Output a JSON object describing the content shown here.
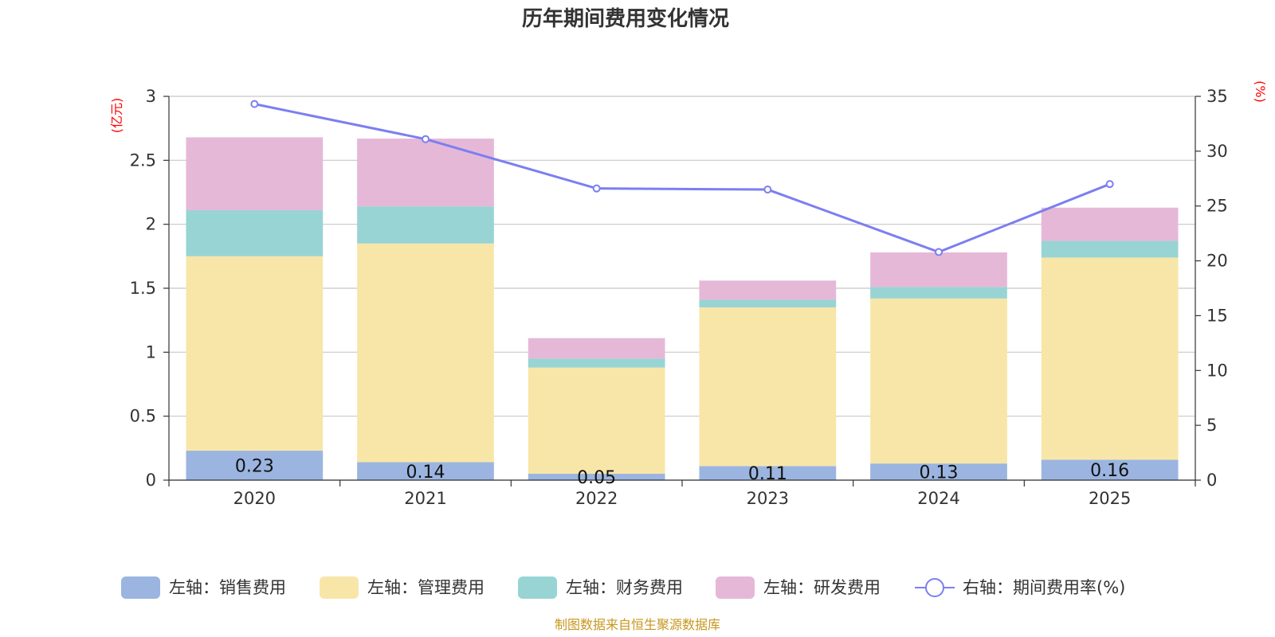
{
  "chart_data": {
    "type": "bar",
    "stacked": true,
    "title": "历年期间费用变化情况",
    "categories": [
      "2020",
      "2021",
      "2022",
      "2023",
      "2024",
      "2025"
    ],
    "left_axis": {
      "unit": "(亿元)",
      "ylim": [
        0,
        3
      ],
      "ticks": [
        "0",
        "0.5",
        "1",
        "1.5",
        "2",
        "2.5",
        "3"
      ]
    },
    "right_axis": {
      "unit": "(%)",
      "ylim": [
        0,
        35
      ],
      "ticks": [
        "0",
        "5",
        "10",
        "15",
        "20",
        "25",
        "30",
        "35"
      ]
    },
    "series": [
      {
        "name": "左轴：销售费用",
        "color": "#9bb5e0",
        "values": [
          0.23,
          0.14,
          0.05,
          0.11,
          0.13,
          0.16
        ],
        "labels": [
          "0.23",
          "0.14",
          "0.05",
          "0.11",
          "0.13",
          "0.16"
        ]
      },
      {
        "name": "左轴：管理费用",
        "color": "#f8e6a8",
        "values": [
          1.52,
          1.71,
          0.83,
          1.24,
          1.29,
          1.58
        ]
      },
      {
        "name": "左轴：财务费用",
        "color": "#98d4d4",
        "values": [
          0.36,
          0.29,
          0.07,
          0.06,
          0.09,
          0.13
        ]
      },
      {
        "name": "左轴：研发费用",
        "color": "#e6b8d8",
        "values": [
          0.57,
          0.53,
          0.16,
          0.15,
          0.27,
          0.26
        ]
      }
    ],
    "line": {
      "name": "右轴：期间费用率(%)",
      "color": "#7b7ff0",
      "values": [
        34.3,
        31.1,
        26.6,
        26.5,
        20.8,
        27.0
      ]
    },
    "legend_position": "bottom",
    "grid": true
  },
  "source": "制图数据来自恒生聚源数据库"
}
